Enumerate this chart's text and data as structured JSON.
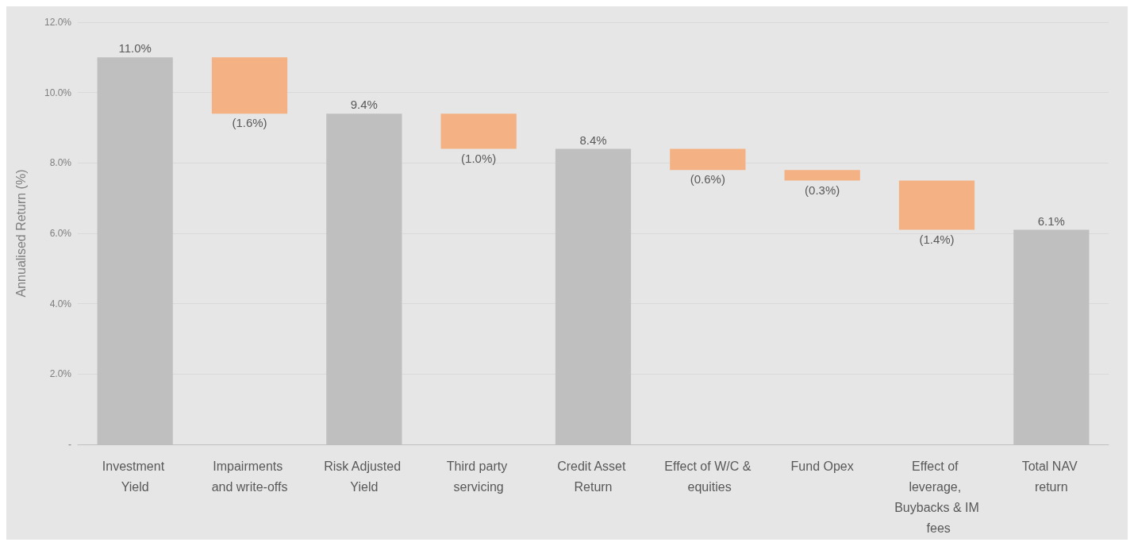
{
  "chart_data": {
    "type": "bar",
    "ylabel": "Annualised Return (%)",
    "categories": [
      "Investment Yield",
      "Impairments and write-offs",
      "Risk Adjusted Yield",
      "Third party servicing",
      "Credit Asset Return",
      "Effect of W/C & equities",
      "Fund Opex",
      "Effect of leverage, Buybacks & IM fees",
      "Total NAV return"
    ],
    "values": [
      11.0,
      -1.6,
      9.4,
      -1.0,
      8.4,
      -0.6,
      -0.3,
      -1.4,
      6.1
    ],
    "base": [
      0,
      11.0,
      0,
      9.4,
      0,
      8.4,
      7.8,
      7.5,
      0
    ],
    "colors": [
      "#bfbfbf",
      "#f4b183",
      "#bfbfbf",
      "#f4b183",
      "#bfbfbf",
      "#f4b183",
      "#f4b183",
      "#f4b183",
      "#bfbfbf"
    ],
    "value_labels": [
      "11.0%",
      "(1.6%)",
      "9.4%",
      "(1.0%)",
      "8.4%",
      "(0.6%)",
      "(0.3%)",
      "(1.4%)",
      "6.1%"
    ],
    "ylim": [
      0,
      12
    ],
    "yticks": [
      {
        "value": 0,
        "label": "-"
      },
      {
        "value": 2,
        "label": "2.0%"
      },
      {
        "value": 4,
        "label": "4.0%"
      },
      {
        "value": 6,
        "label": "6.0%"
      },
      {
        "value": 8,
        "label": "8.0%"
      },
      {
        "value": 10,
        "label": "10.0%"
      },
      {
        "value": 12,
        "label": "12.0%"
      }
    ],
    "grid": "y"
  }
}
